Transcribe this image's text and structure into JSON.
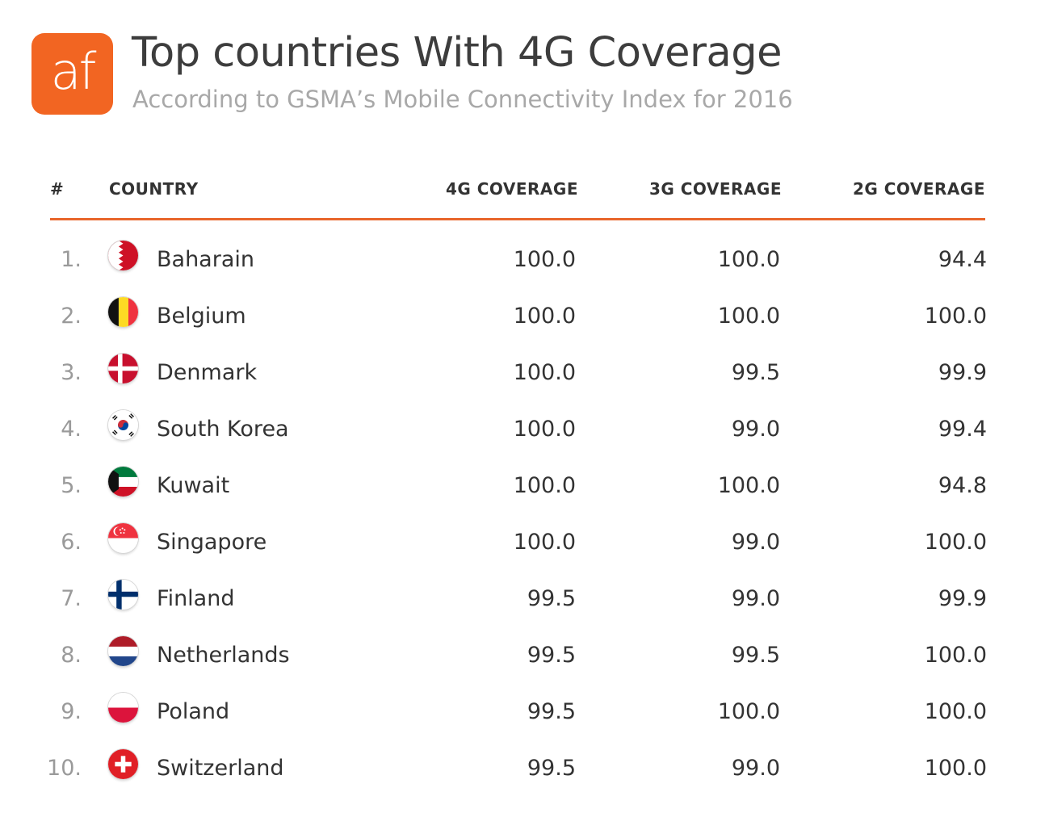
{
  "logo": {
    "text": "af",
    "color": "#f26522"
  },
  "header": {
    "title": "Top countries With 4G Coverage",
    "subtitle": "According to GSMA’s Mobile Connectivity Index for 2016"
  },
  "colors": {
    "accent": "#e8662b"
  },
  "chart_data": {
    "type": "table",
    "title": "Top countries With 4G Coverage",
    "subtitle": "According to GSMA’s Mobile Connectivity Index for 2016",
    "columns": [
      "#",
      "COUNTRY",
      "4G COVERAGE",
      "3G COVERAGE",
      "2G COVERAGE"
    ],
    "rows": [
      {
        "rank": "1.",
        "country": "Baharain",
        "flag": "bahrain-flag-icon",
        "g4": "100.0",
        "g3": "100.0",
        "g2": "94.4"
      },
      {
        "rank": "2.",
        "country": "Belgium",
        "flag": "belgium-flag-icon",
        "g4": "100.0",
        "g3": "100.0",
        "g2": "100.0"
      },
      {
        "rank": "3.",
        "country": "Denmark",
        "flag": "denmark-flag-icon",
        "g4": "100.0",
        "g3": "99.5",
        "g2": "99.9"
      },
      {
        "rank": "4.",
        "country": "South Korea",
        "flag": "south-korea-flag-icon",
        "g4": "100.0",
        "g3": "99.0",
        "g2": "99.4"
      },
      {
        "rank": "5.",
        "country": "Kuwait",
        "flag": "kuwait-flag-icon",
        "g4": "100.0",
        "g3": "100.0",
        "g2": "94.8"
      },
      {
        "rank": "6.",
        "country": "Singapore",
        "flag": "singapore-flag-icon",
        "g4": "100.0",
        "g3": "99.0",
        "g2": "100.0"
      },
      {
        "rank": "7.",
        "country": "Finland",
        "flag": "finland-flag-icon",
        "g4": "99.5",
        "g3": "99.0",
        "g2": "99.9"
      },
      {
        "rank": "8.",
        "country": "Netherlands",
        "flag": "netherlands-flag-icon",
        "g4": "99.5",
        "g3": "99.5",
        "g2": "100.0"
      },
      {
        "rank": "9.",
        "country": "Poland",
        "flag": "poland-flag-icon",
        "g4": "99.5",
        "g3": "100.0",
        "g2": "100.0"
      },
      {
        "rank": "10.",
        "country": "Switzerland",
        "flag": "switzerland-flag-icon",
        "g4": "99.5",
        "g3": "99.0",
        "g2": "100.0"
      }
    ]
  }
}
